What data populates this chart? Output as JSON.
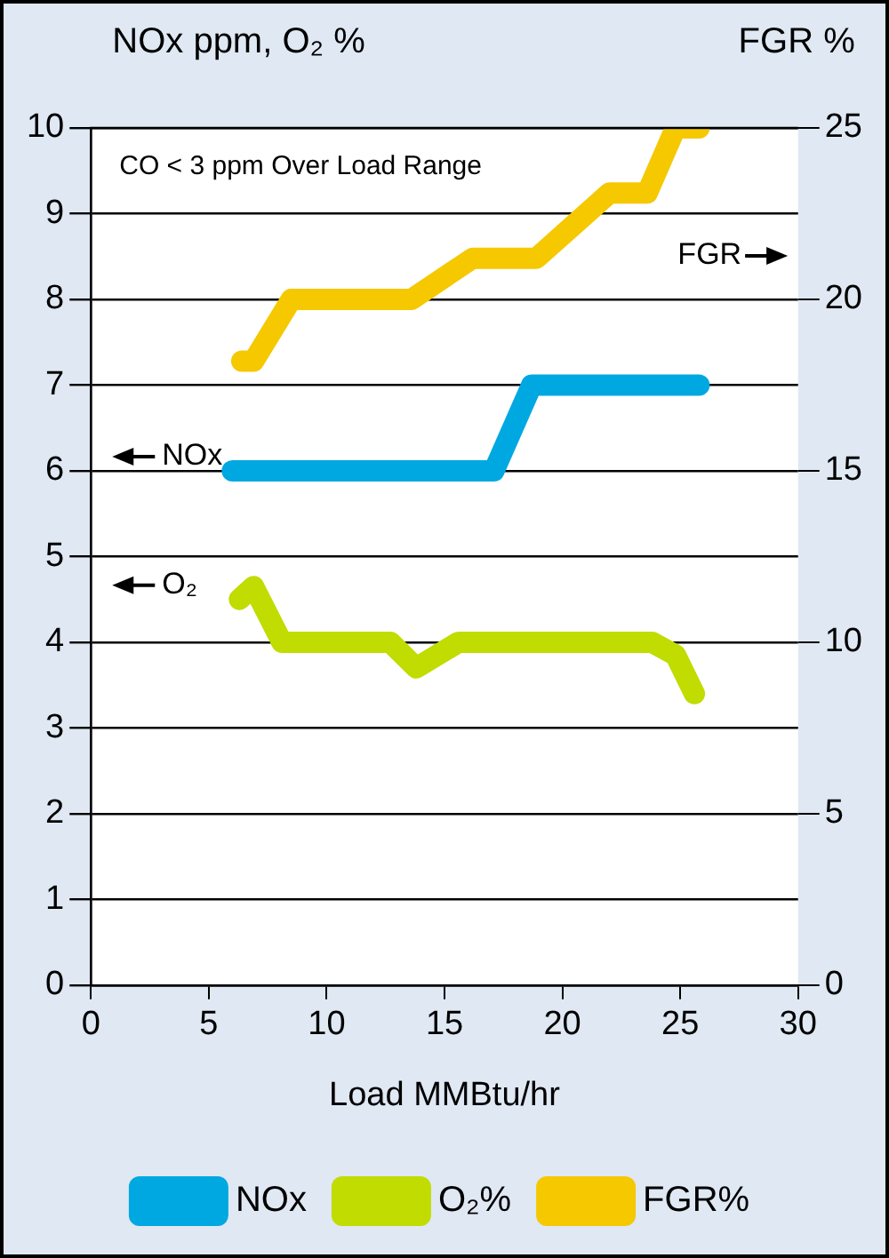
{
  "chart_data": {
    "type": "line",
    "xlabel": "Load MMBtu/hr",
    "ylabel": "NOx ppm, O₂ %",
    "y2label": "FGR %",
    "xlim": [
      0,
      30
    ],
    "xticks": [
      0,
      5,
      10,
      15,
      20,
      25,
      30
    ],
    "ylim": [
      0,
      10
    ],
    "yticks": [
      0,
      1,
      2,
      3,
      4,
      5,
      6,
      7,
      8,
      9,
      10
    ],
    "y2lim": [
      0,
      25
    ],
    "y2ticks": [
      0,
      5,
      10,
      15,
      20,
      25
    ],
    "grid": "y",
    "legend": "bottom",
    "marker": "none",
    "line_style": "solid",
    "series": [
      {
        "name": "NOx",
        "color": "#00a8e1",
        "x": [
          6.0,
          17.1,
          18.7,
          25.8
        ],
        "values": [
          6.0,
          6.0,
          7.0,
          7.0
        ]
      },
      {
        "name": "O₂%",
        "color": "#c0dc00",
        "x": [
          6.3,
          6.9,
          8.1,
          12.7,
          13.8,
          15.6,
          23.8,
          24.8,
          25.6
        ],
        "values": [
          4.5,
          4.65,
          4.0,
          4.0,
          3.7,
          4.0,
          4.0,
          3.85,
          3.4
        ]
      },
      {
        "name": "FGR%",
        "color": "#f5c800",
        "axis": "y2",
        "x": [
          6.4,
          6.9,
          8.5,
          13.6,
          16.2,
          18.9,
          22.0,
          23.6,
          24.8,
          25.8
        ],
        "values": [
          18.2,
          18.2,
          20.0,
          20.0,
          21.2,
          21.2,
          23.1,
          23.1,
          25.0,
          25.0
        ]
      }
    ],
    "annotations": [
      "CO < 3 ppm Over Load Range",
      "NOx",
      "O₂",
      "FGR"
    ]
  }
}
